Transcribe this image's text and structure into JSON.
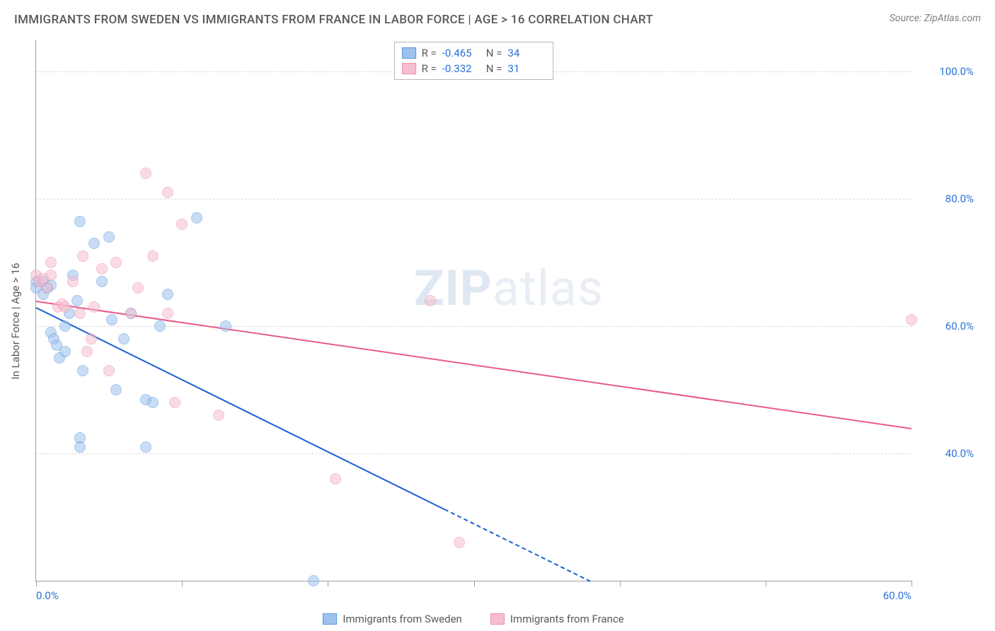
{
  "title": "IMMIGRANTS FROM SWEDEN VS IMMIGRANTS FROM FRANCE IN LABOR FORCE | AGE > 16 CORRELATION CHART",
  "source": "Source: ZipAtlas.com",
  "watermark_a": "ZIP",
  "watermark_b": "atlas",
  "chart": {
    "type": "scatter",
    "yaxis_title": "In Labor Force | Age > 16",
    "background_color": "#ffffff",
    "grid_color": "#d8d8d8",
    "axis_color": "#a0a0a0",
    "tick_color": "#2b71d9",
    "xlim": [
      0,
      60
    ],
    "ylim": [
      20,
      105
    ],
    "xticks": [
      0,
      10,
      20,
      30,
      40,
      50,
      60
    ],
    "xtick_labels": [
      "0.0%",
      "",
      "",
      "",
      "",
      "",
      "60.0%"
    ],
    "yticks": [
      40,
      60,
      80,
      100
    ],
    "ytick_labels": [
      "40.0%",
      "60.0%",
      "80.0%",
      "100.0%"
    ],
    "marker_radius": 8,
    "marker_opacity": 0.55,
    "series": [
      {
        "name": "Immigrants from Sweden",
        "color_fill": "#9cc3ed",
        "color_stroke": "#5a96dd",
        "trend_color": "#1d5fd6",
        "R": "-0.465",
        "N": "34",
        "trend": {
          "x1": 0,
          "y1": 63,
          "x2": 38,
          "y2": 20,
          "dash_after_x": 28
        },
        "points": [
          [
            0,
            67
          ],
          [
            0,
            66
          ],
          [
            0.5,
            67
          ],
          [
            0.5,
            65
          ],
          [
            0.8,
            66
          ],
          [
            1,
            66.5
          ],
          [
            1,
            59
          ],
          [
            1.2,
            58
          ],
          [
            1.4,
            57
          ],
          [
            1.6,
            55
          ],
          [
            2,
            56
          ],
          [
            2,
            60
          ],
          [
            2.3,
            62
          ],
          [
            2.5,
            68
          ],
          [
            2.8,
            64
          ],
          [
            3,
            76.5
          ],
          [
            3.2,
            53
          ],
          [
            3,
            42.5
          ],
          [
            3,
            41
          ],
          [
            4,
            73
          ],
          [
            4.5,
            67
          ],
          [
            5,
            74
          ],
          [
            5.2,
            61
          ],
          [
            5.5,
            50
          ],
          [
            6,
            58
          ],
          [
            6.5,
            62
          ],
          [
            7.5,
            48.5
          ],
          [
            7.5,
            41
          ],
          [
            8,
            48
          ],
          [
            8.5,
            60
          ],
          [
            9,
            65
          ],
          [
            11,
            77
          ],
          [
            13,
            60
          ],
          [
            19,
            20
          ]
        ]
      },
      {
        "name": "Immigrants from France",
        "color_fill": "#f6bfcf",
        "color_stroke": "#ec8fab",
        "trend_color": "#e85a8a",
        "R": "-0.332",
        "N": "31",
        "trend": {
          "x1": 0,
          "y1": 64,
          "x2": 60,
          "y2": 44,
          "dash_after_x": 60
        },
        "points": [
          [
            0,
            68
          ],
          [
            0.2,
            67
          ],
          [
            0.5,
            67.5
          ],
          [
            0.8,
            66
          ],
          [
            1,
            68
          ],
          [
            1,
            70
          ],
          [
            1.5,
            63
          ],
          [
            1.8,
            63.5
          ],
          [
            2,
            63
          ],
          [
            2.5,
            67
          ],
          [
            3,
            62
          ],
          [
            3.2,
            71
          ],
          [
            3.5,
            56
          ],
          [
            3.8,
            58
          ],
          [
            4,
            63
          ],
          [
            4.5,
            69
          ],
          [
            5,
            53
          ],
          [
            5.5,
            70
          ],
          [
            6.5,
            62
          ],
          [
            7,
            66
          ],
          [
            7.5,
            84
          ],
          [
            8,
            71
          ],
          [
            9,
            62
          ],
          [
            9,
            81
          ],
          [
            9.5,
            48
          ],
          [
            10,
            76
          ],
          [
            12.5,
            46
          ],
          [
            20.5,
            36
          ],
          [
            27,
            64
          ],
          [
            29,
            26
          ],
          [
            60,
            61
          ]
        ]
      }
    ],
    "legend_labels": {
      "sweden": "Immigrants from Sweden",
      "france": "Immigrants from France"
    },
    "corr_label_R": "R =",
    "corr_label_N": "N ="
  }
}
